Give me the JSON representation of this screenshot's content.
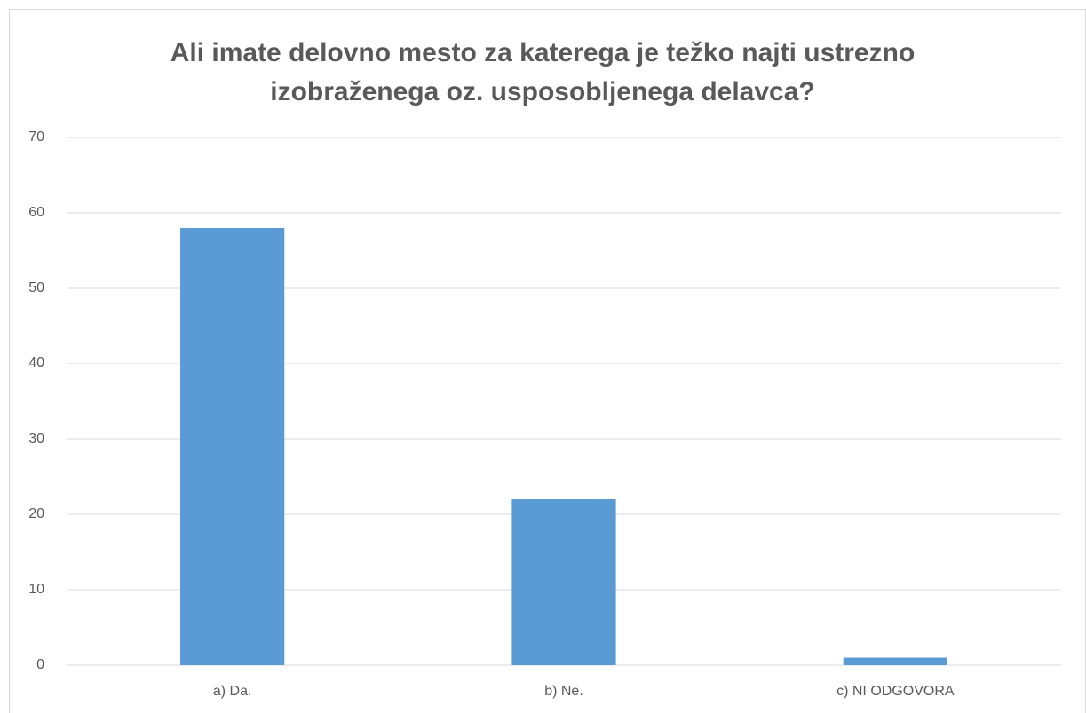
{
  "chart_data": {
    "type": "bar",
    "title": "Ali imate delovno mesto za katerega je težko najti ustrezno izobraženega oz. usposobljenega delavca?",
    "categories": [
      "a) Da.",
      "b) Ne.",
      "c) NI ODGOVORA"
    ],
    "values": [
      58,
      22,
      1
    ],
    "color": "#5b9bd5",
    "ylim": [
      0,
      70
    ],
    "yticks": [
      0,
      10,
      20,
      30,
      40,
      50,
      60,
      70
    ],
    "grid": true
  }
}
